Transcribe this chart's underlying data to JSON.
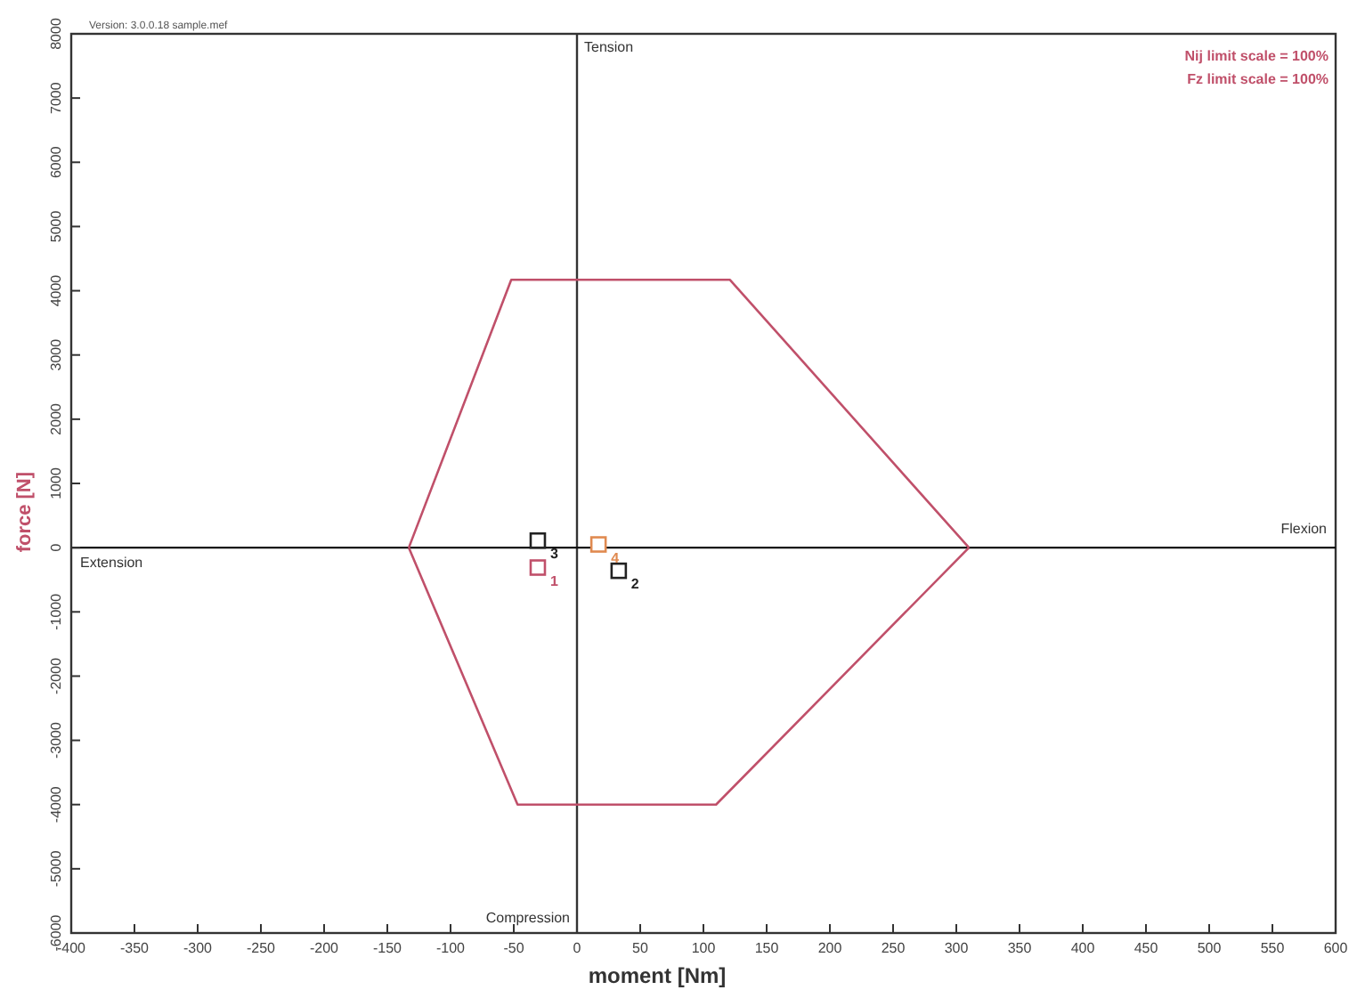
{
  "chart_data": {
    "type": "scatter",
    "xlabel": "moment [Nm]",
    "ylabel": "force [N]",
    "xlim": [
      -400,
      600
    ],
    "xticks": [
      -400,
      -350,
      -300,
      -250,
      -200,
      -150,
      -100,
      -50,
      0,
      50,
      100,
      150,
      200,
      250,
      300,
      350,
      400,
      450,
      500,
      550,
      600
    ],
    "ylim": [
      -6000,
      8000
    ],
    "yticks": [
      -6000,
      -5000,
      -4000,
      -3000,
      -2000,
      -1000,
      0,
      1000,
      2000,
      3000,
      4000,
      5000,
      6000,
      7000,
      8000
    ],
    "grid": false,
    "legend": false,
    "ref_lines": [
      {
        "axis": "x",
        "value": 0,
        "color": "#333333"
      },
      {
        "axis": "y",
        "value": 0,
        "color": "#111111"
      }
    ],
    "series": [
      {
        "type": "line",
        "marker": "none",
        "color": "#c0506a",
        "x": [
          -133,
          -52,
          121,
          310
        ],
        "values": [
          0,
          4170,
          4170,
          0
        ]
      },
      {
        "type": "line",
        "marker": "none",
        "color": "#c0506a",
        "x": [
          -133,
          -47,
          110,
          310
        ],
        "values": [
          0,
          -4000,
          -4000,
          0
        ]
      },
      {
        "type": "scatter",
        "marker": "square",
        "name": "1",
        "color": "#c0506a",
        "x": [
          -31
        ],
        "values": [
          -310
        ]
      },
      {
        "type": "scatter",
        "marker": "square",
        "name": "2",
        "color": "#222222",
        "x": [
          33
        ],
        "values": [
          -360
        ]
      },
      {
        "type": "scatter",
        "marker": "square",
        "name": "3",
        "color": "#222222",
        "x": [
          -31
        ],
        "values": [
          110
        ]
      },
      {
        "type": "scatter",
        "marker": "square",
        "name": "4",
        "color": "#e08a50",
        "x": [
          17
        ],
        "values": [
          50
        ]
      }
    ],
    "annotations": [
      "Version: 3.0.0.18 sample.mef",
      "Nij limit scale  = 100%",
      "Fz limit scale  = 100%",
      "Tension",
      "Compression",
      "Extension",
      "Flexion"
    ]
  }
}
